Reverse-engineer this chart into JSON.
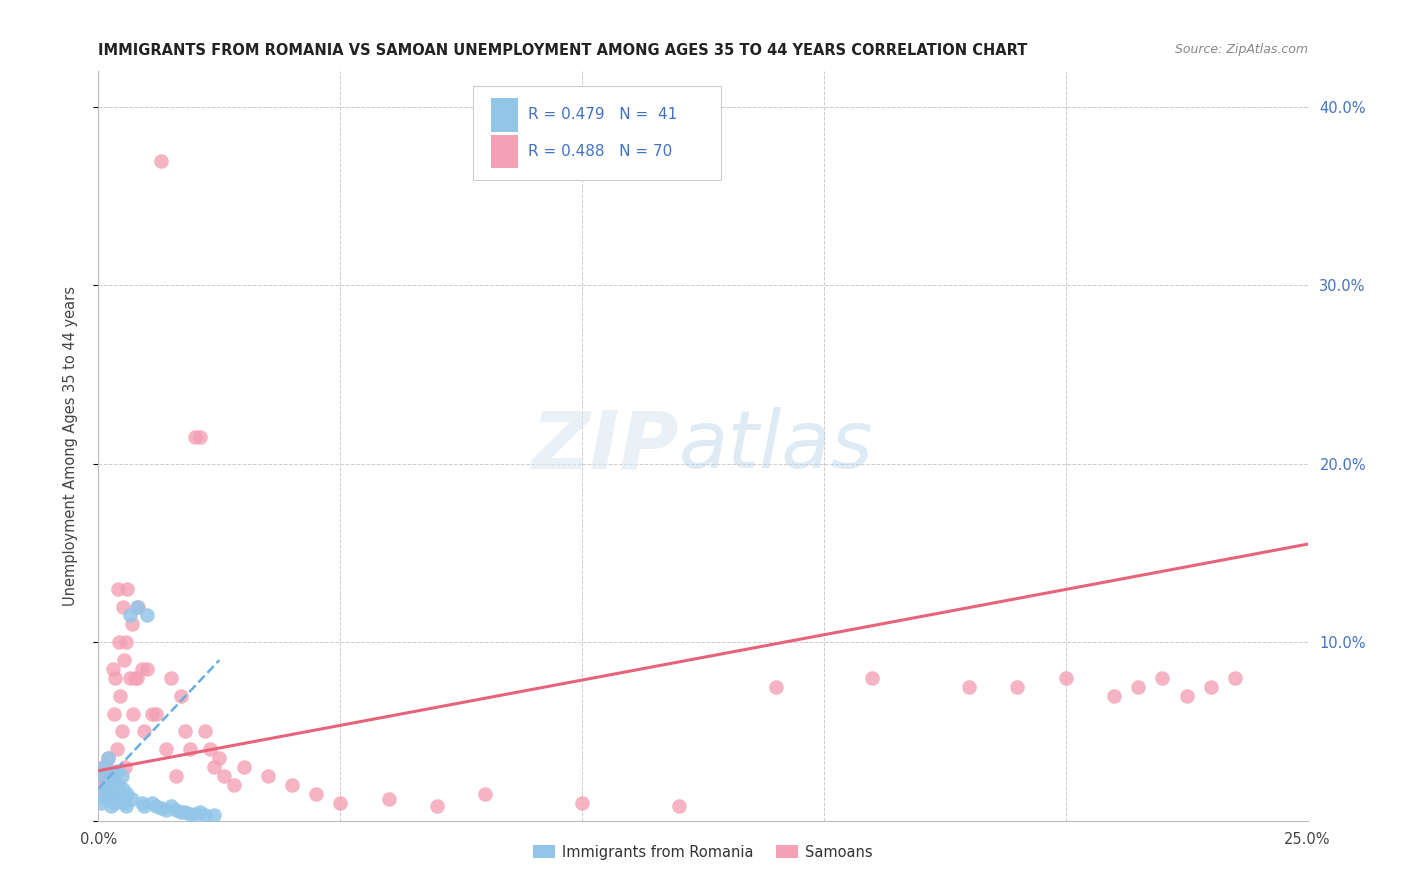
{
  "title": "IMMIGRANTS FROM ROMANIA VS SAMOAN UNEMPLOYMENT AMONG AGES 35 TO 44 YEARS CORRELATION CHART",
  "source": "Source: ZipAtlas.com",
  "ylabel": "Unemployment Among Ages 35 to 44 years",
  "xlim": [
    0.0,
    0.25
  ],
  "ylim": [
    0.0,
    0.42
  ],
  "color_romania": "#92c5e8",
  "color_samoan": "#f4a0b5",
  "color_romania_line": "#6aaee0",
  "color_samoan_line": "#e8637a",
  "romania_x": [
    0.0005,
    0.001,
    0.0008,
    0.0012,
    0.0015,
    0.002,
    0.0018,
    0.0022,
    0.0025,
    0.003,
    0.0028,
    0.0032,
    0.0035,
    0.004,
    0.0038,
    0.0042,
    0.0045,
    0.005,
    0.0048,
    0.0052,
    0.006,
    0.0058,
    0.007,
    0.0065,
    0.008,
    0.009,
    0.01,
    0.0095,
    0.011,
    0.012,
    0.013,
    0.014,
    0.015,
    0.016,
    0.017,
    0.018,
    0.019,
    0.02,
    0.021,
    0.022,
    0.024
  ],
  "romania_y": [
    0.01,
    0.025,
    0.015,
    0.03,
    0.012,
    0.035,
    0.02,
    0.018,
    0.008,
    0.022,
    0.015,
    0.025,
    0.01,
    0.02,
    0.028,
    0.015,
    0.012,
    0.018,
    0.025,
    0.01,
    0.015,
    0.008,
    0.012,
    0.115,
    0.12,
    0.01,
    0.115,
    0.008,
    0.01,
    0.008,
    0.007,
    0.006,
    0.008,
    0.006,
    0.005,
    0.005,
    0.004,
    0.004,
    0.005,
    0.003,
    0.003
  ],
  "samoan_x": [
    0.0005,
    0.0008,
    0.001,
    0.0012,
    0.0015,
    0.0018,
    0.002,
    0.0022,
    0.0025,
    0.0028,
    0.003,
    0.0032,
    0.0035,
    0.0038,
    0.004,
    0.0042,
    0.0045,
    0.0048,
    0.005,
    0.0052,
    0.0055,
    0.006,
    0.0058,
    0.0065,
    0.007,
    0.0072,
    0.0075,
    0.008,
    0.0082,
    0.009,
    0.0095,
    0.01,
    0.011,
    0.012,
    0.013,
    0.014,
    0.015,
    0.016,
    0.017,
    0.018,
    0.019,
    0.02,
    0.021,
    0.022,
    0.023,
    0.024,
    0.025,
    0.026,
    0.028,
    0.03,
    0.035,
    0.04,
    0.045,
    0.05,
    0.06,
    0.07,
    0.08,
    0.1,
    0.12,
    0.14,
    0.16,
    0.18,
    0.19,
    0.2,
    0.21,
    0.215,
    0.22,
    0.225,
    0.23,
    0.235
  ],
  "samoan_y": [
    0.025,
    0.02,
    0.03,
    0.015,
    0.025,
    0.018,
    0.035,
    0.022,
    0.012,
    0.028,
    0.085,
    0.06,
    0.08,
    0.04,
    0.13,
    0.1,
    0.07,
    0.05,
    0.12,
    0.09,
    0.03,
    0.13,
    0.1,
    0.08,
    0.11,
    0.06,
    0.08,
    0.08,
    0.12,
    0.085,
    0.05,
    0.085,
    0.06,
    0.06,
    0.37,
    0.04,
    0.08,
    0.025,
    0.07,
    0.05,
    0.04,
    0.215,
    0.215,
    0.05,
    0.04,
    0.03,
    0.035,
    0.025,
    0.02,
    0.03,
    0.025,
    0.02,
    0.015,
    0.01,
    0.012,
    0.008,
    0.015,
    0.01,
    0.008,
    0.075,
    0.08,
    0.075,
    0.075,
    0.08,
    0.07,
    0.075,
    0.08,
    0.07,
    0.075,
    0.08
  ],
  "rom_line_x": [
    0.0,
    0.025
  ],
  "rom_line_y": [
    0.018,
    0.09
  ],
  "sam_line_x": [
    0.0,
    0.25
  ],
  "sam_line_y": [
    0.028,
    0.155
  ]
}
